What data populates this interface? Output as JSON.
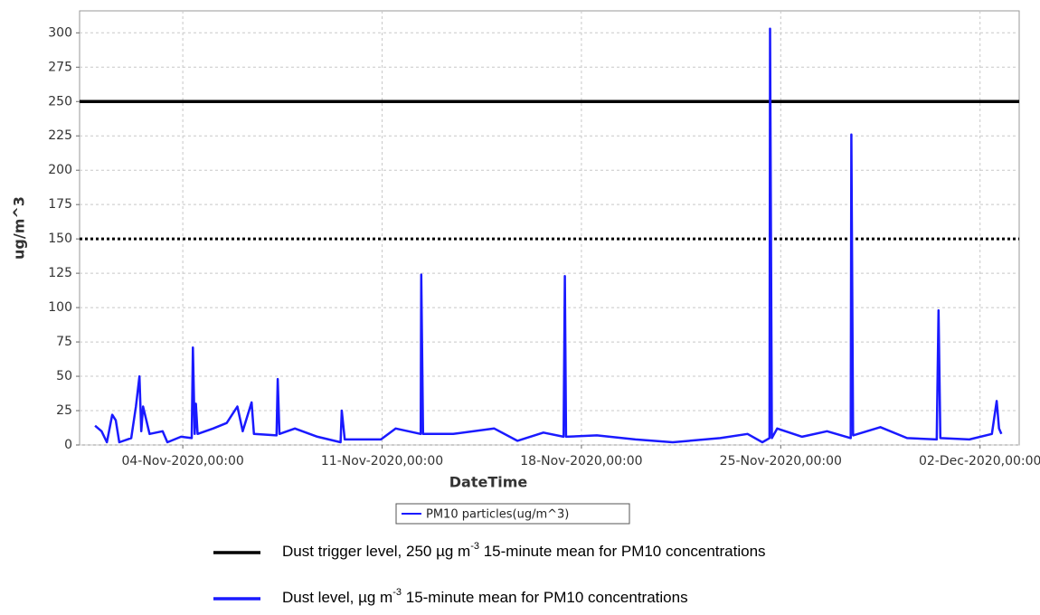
{
  "chart_data": {
    "type": "line",
    "x_label": "DateTime",
    "y_label": "ug/m^3",
    "xlim": [
      "2020-10-31T09:00",
      "2020-12-03T09:00"
    ],
    "xticks": [
      {
        "value": "2020-11-04T00:00",
        "label": "04-Nov-2020,00:00"
      },
      {
        "value": "2020-11-11T00:00",
        "label": "11-Nov-2020,00:00"
      },
      {
        "value": "2020-11-18T00:00",
        "label": "18-Nov-2020,00:00"
      },
      {
        "value": "2020-11-25T00:00",
        "label": "25-Nov-2020,00:00"
      },
      {
        "value": "2020-12-02T00:00",
        "label": "02-Dec-2020,00:00"
      }
    ],
    "ylim": [
      0,
      316
    ],
    "yticks": [
      0,
      25,
      50,
      75,
      100,
      125,
      150,
      175,
      200,
      225,
      250,
      275,
      300
    ],
    "grid": true,
    "legend": "bottom",
    "reference_lines": [
      {
        "value": 250,
        "color": "#000000",
        "style": "solid"
      },
      {
        "value": 150,
        "color": "#000000",
        "style": "dotted"
      }
    ],
    "x": [
      "2020-10-31T22:00",
      "2020-11-01T03:30",
      "2020-11-01T08:00",
      "2020-11-01T12:30",
      "2020-11-01T15:30",
      "2020-11-01T18:30",
      "2020-11-02T04:30",
      "2020-11-02T08:30",
      "2020-11-02T11:30",
      "2020-11-02T13:00",
      "2020-11-02T14:30",
      "2020-11-02T20:00",
      "2020-11-03T07:00",
      "2020-11-03T11:00",
      "2020-11-03T22:30",
      "2020-11-04T07:30",
      "2020-11-04T08:30",
      "2020-11-04T10:00",
      "2020-11-04T11:00",
      "2020-11-04T12:30",
      "2020-11-05T01:30",
      "2020-11-05T13:00",
      "2020-11-05T22:00",
      "2020-11-06T02:30",
      "2020-11-06T10:00",
      "2020-11-06T12:00",
      "2020-11-07T07:00",
      "2020-11-07T08:00",
      "2020-11-07T09:30",
      "2020-11-07T22:30",
      "2020-11-08T17:30",
      "2020-11-09T13:00",
      "2020-11-09T14:00",
      "2020-11-09T16:30",
      "2020-11-10T23:00",
      "2020-11-11T11:30",
      "2020-11-12T08:30",
      "2020-11-12T09:00",
      "2020-11-12T10:30",
      "2020-11-13T12:00",
      "2020-11-14T22:30",
      "2020-11-15T18:00",
      "2020-11-16T16:00",
      "2020-11-17T09:00",
      "2020-11-17T10:00",
      "2020-11-17T11:00",
      "2020-11-18T13:00",
      "2020-11-19T21:30",
      "2020-11-21T05:00",
      "2020-11-22T21:00",
      "2020-11-23T20:00",
      "2020-11-24T08:30",
      "2020-11-24T14:30",
      "2020-11-24T15:00",
      "2020-11-24T16:30",
      "2020-11-24T21:00",
      "2020-11-25T18:00",
      "2020-11-26T15:00",
      "2020-11-27T11:00",
      "2020-11-27T11:30",
      "2020-11-27T13:00",
      "2020-11-28T12:00",
      "2020-11-29T10:30",
      "2020-11-30T11:30",
      "2020-11-30T13:00",
      "2020-11-30T14:30",
      "2020-12-01T15:00",
      "2020-12-02T10:00",
      "2020-12-02T14:00",
      "2020-12-02T16:00",
      "2020-12-02T18:00"
    ],
    "series": [
      {
        "name": "PM10 particles(ug/m^3)",
        "color": "#1a1aff",
        "values": [
          14,
          10,
          2,
          22,
          18,
          2,
          5,
          28,
          50,
          10,
          28,
          8,
          10,
          2,
          6,
          5,
          71,
          8,
          30,
          8,
          12,
          16,
          28,
          10,
          31,
          8,
          7,
          48,
          8,
          12,
          6,
          2,
          25,
          4,
          4,
          12,
          8,
          124,
          8,
          8,
          12,
          3,
          9,
          6,
          123,
          6,
          7,
          4,
          2,
          5,
          8,
          2,
          5,
          303,
          5,
          12,
          6,
          10,
          5,
          226,
          7,
          13,
          5,
          4,
          98,
          5,
          4,
          8,
          32,
          12,
          8
        ]
      }
    ],
    "notes": [
      {
        "color": "#000000",
        "parts": [
          "Dust trigger level, 250 µg m",
          "-3",
          " 15-minute mean for PM10 concentrations"
        ]
      },
      {
        "color": "#1a1aff",
        "parts": [
          "Dust level, µg m",
          "-3",
          " 15-minute mean for PM10 concentrations"
        ]
      }
    ]
  }
}
